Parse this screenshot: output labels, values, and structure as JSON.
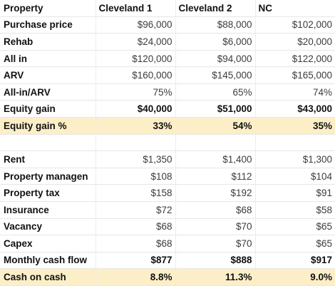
{
  "headers": [
    "Property",
    "Cleveland 1",
    "Cleveland 2",
    "NC"
  ],
  "colors": {
    "highlight_row": "#fcefc8",
    "grid_line": "#e6e6e6"
  },
  "section1": [
    {
      "label": "Purchase price",
      "values": [
        "$96,000",
        "$88,000",
        "$102,000"
      ],
      "bold": false,
      "highlight": false
    },
    {
      "label": "Rehab",
      "values": [
        "$24,000",
        "$6,000",
        "$20,000"
      ],
      "bold": false,
      "highlight": false
    },
    {
      "label": "All in",
      "values": [
        "$120,000",
        "$94,000",
        "$122,000"
      ],
      "bold": false,
      "highlight": false
    },
    {
      "label": "ARV",
      "values": [
        "$160,000",
        "$145,000",
        "$165,000"
      ],
      "bold": false,
      "highlight": false
    },
    {
      "label": "All-in/ARV",
      "values": [
        "75%",
        "65%",
        "74%"
      ],
      "bold": false,
      "highlight": false
    },
    {
      "label": "Equity gain",
      "values": [
        "$40,000",
        "$51,000",
        "$43,000"
      ],
      "bold": true,
      "highlight": false
    },
    {
      "label": "Equity gain %",
      "values": [
        "33%",
        "54%",
        "35%"
      ],
      "bold": true,
      "highlight": true
    }
  ],
  "section2": [
    {
      "label": "Rent",
      "values": [
        "$1,350",
        "$1,400",
        "$1,300"
      ],
      "bold": false,
      "highlight": false
    },
    {
      "label": "Property managen",
      "values": [
        "$108",
        "$112",
        "$104"
      ],
      "bold": false,
      "highlight": false
    },
    {
      "label": "Property tax",
      "values": [
        "$158",
        "$192",
        "$91"
      ],
      "bold": false,
      "highlight": false
    },
    {
      "label": "Insurance",
      "values": [
        "$72",
        "$68",
        "$58"
      ],
      "bold": false,
      "highlight": false
    },
    {
      "label": "Vacancy",
      "values": [
        "$68",
        "$70",
        "$65"
      ],
      "bold": false,
      "highlight": false
    },
    {
      "label": "Capex",
      "values": [
        "$68",
        "$70",
        "$65"
      ],
      "bold": false,
      "highlight": false
    },
    {
      "label": "Monthly cash flow",
      "values": [
        "$877",
        "$888",
        "$917"
      ],
      "bold": true,
      "highlight": false
    },
    {
      "label": "Cash on cash",
      "values": [
        "8.8%",
        "11.3%",
        "9.0%"
      ],
      "bold": true,
      "highlight": true
    }
  ]
}
